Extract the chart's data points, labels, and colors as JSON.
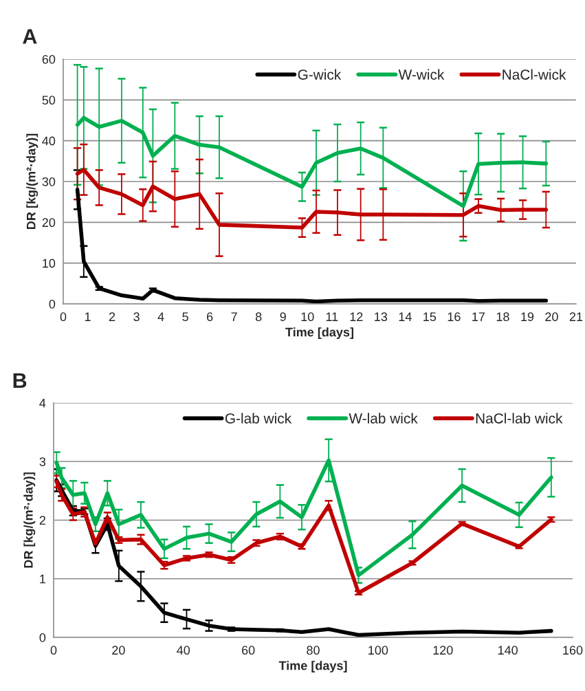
{
  "chart_data": [
    {
      "type": "line",
      "title": "A",
      "xlabel": "Time [days]",
      "ylabel": "DR [kg/(m²·day)]",
      "x": [
        0.58,
        0.84,
        1.47,
        2.39,
        3.26,
        3.67,
        4.57,
        5.58,
        6.39,
        9.78,
        10.36,
        11.23,
        12.18,
        13.1,
        16.38,
        17.0,
        17.92,
        18.82,
        19.77
      ],
      "series": [
        {
          "name": "G-wick",
          "color": "#000000",
          "values": [
            28.0,
            10.4,
            3.8,
            2.1,
            1.3,
            3.4,
            1.4,
            1.0,
            0.9,
            0.8,
            0.6,
            0.8,
            0.9,
            0.9,
            0.9,
            0.7,
            0.8,
            0.8,
            0.8
          ],
          "errors": [
            4.8,
            3.8,
            0.4,
            null,
            null,
            0.4,
            null,
            null,
            null,
            null,
            null,
            null,
            null,
            null,
            null,
            null,
            null,
            null,
            null
          ]
        },
        {
          "name": "W-wick",
          "color": "#00b050",
          "values": [
            43.9,
            45.6,
            43.4,
            44.9,
            42.0,
            36.3,
            41.2,
            39.0,
            38.4,
            28.7,
            34.6,
            37.0,
            38.1,
            35.8,
            24.0,
            34.3,
            34.6,
            34.7,
            34.4
          ],
          "errors": [
            14.7,
            12.5,
            14.3,
            10.3,
            11.0,
            11.4,
            8.1,
            7.0,
            7.6,
            3.5,
            7.9,
            7.0,
            6.4,
            7.4,
            8.5,
            7.5,
            7.1,
            6.4,
            5.4
          ]
        },
        {
          "name": "NaCl-wick",
          "color": "#c00000",
          "values": [
            31.9,
            32.9,
            28.5,
            26.9,
            24.2,
            28.8,
            25.7,
            26.9,
            19.4,
            18.7,
            22.6,
            22.4,
            21.9,
            21.9,
            21.8,
            24.0,
            23.0,
            23.1,
            23.1
          ],
          "errors": [
            6.3,
            6.2,
            4.3,
            4.9,
            3.9,
            6.1,
            6.8,
            8.5,
            7.7,
            2.3,
            5.2,
            5.5,
            6.3,
            6.2,
            5.3,
            1.7,
            2.8,
            2.3,
            4.4
          ]
        }
      ],
      "xlim": [
        0,
        21
      ],
      "xticks": [
        0,
        1,
        2,
        3,
        4,
        5,
        6,
        7,
        8,
        9,
        10,
        11,
        12,
        13,
        14,
        15,
        16,
        17,
        18,
        19,
        20,
        21
      ],
      "ylim": [
        0,
        60
      ],
      "yticks": [
        0,
        10,
        20,
        30,
        40,
        50,
        60
      ],
      "grid": "y",
      "legend": "top right",
      "line_style": "solid",
      "marker": "none"
    },
    {
      "type": "line",
      "title": "B",
      "xlabel": "Time [days]",
      "ylabel": "DR [kg/(m²·day)]",
      "x": [
        0.9,
        2.5,
        6.0,
        9.5,
        12.9,
        16.6,
        20.1,
        26.9,
        34.1,
        41.0,
        47.9,
        54.8,
        62.5,
        69.8,
        76.5,
        84.8,
        94.0,
        110.6,
        125.9,
        143.5,
        153.4
      ],
      "series": [
        {
          "name": "G-lab wick",
          "color": "#000000",
          "values": [
            2.68,
            2.51,
            2.16,
            2.15,
            1.56,
            1.93,
            1.22,
            0.87,
            0.42,
            0.31,
            0.2,
            0.14,
            0.13,
            0.12,
            0.09,
            0.14,
            0.04,
            0.08,
            0.1,
            0.08,
            0.11
          ],
          "errors": [
            0.19,
            0.1,
            0.08,
            0.05,
            0.12,
            0.1,
            0.26,
            0.25,
            0.16,
            0.16,
            0.09,
            0.03,
            null,
            0.02,
            null,
            null,
            null,
            null,
            null,
            null,
            null
          ]
        },
        {
          "name": "W-lab wick",
          "color": "#00b050",
          "values": [
            2.98,
            2.72,
            2.43,
            2.46,
            1.93,
            2.46,
            1.93,
            2.09,
            1.51,
            1.7,
            1.77,
            1.63,
            2.1,
            2.32,
            2.05,
            3.02,
            1.06,
            1.75,
            2.59,
            2.09,
            2.73
          ],
          "errors": [
            0.18,
            0.17,
            0.24,
            0.18,
            0.12,
            0.21,
            0.25,
            0.22,
            0.16,
            0.19,
            0.16,
            0.16,
            0.21,
            0.28,
            0.21,
            0.36,
            0.13,
            0.23,
            0.28,
            0.21,
            0.33
          ]
        },
        {
          "name": "NaCl-lab wick",
          "color": "#c00000",
          "values": [
            2.66,
            2.43,
            2.1,
            2.14,
            1.6,
            2.05,
            1.66,
            1.67,
            1.23,
            1.35,
            1.41,
            1.32,
            1.61,
            1.72,
            1.55,
            2.25,
            0.76,
            1.27,
            1.94,
            1.55,
            2.01
          ],
          "errors": [
            0.1,
            0.1,
            0.1,
            0.08,
            null,
            0.08,
            0.05,
            0.08,
            0.06,
            0.04,
            0.04,
            0.05,
            0.05,
            0.05,
            0.04,
            0.08,
            0.03,
            0.03,
            0.03,
            0.03,
            0.04
          ]
        }
      ],
      "xlim": [
        0,
        160
      ],
      "xticks": [
        0,
        20,
        40,
        60,
        80,
        100,
        120,
        140,
        160
      ],
      "ylim": [
        0,
        4
      ],
      "yticks": [
        0,
        1,
        2,
        3,
        4
      ],
      "grid": "y",
      "legend": "top right",
      "line_style": "solid",
      "marker": "none"
    }
  ]
}
